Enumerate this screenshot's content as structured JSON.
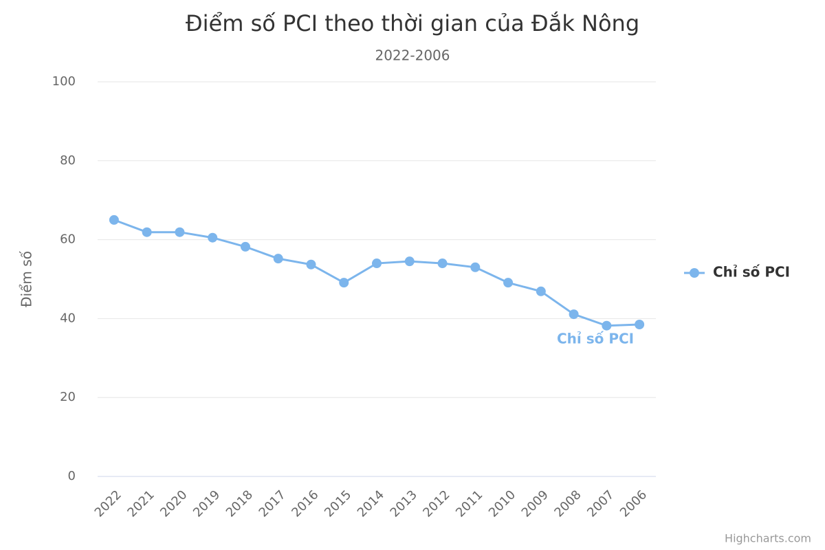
{
  "chart_data": {
    "type": "line",
    "title": "Điểm số PCI theo thời gian của Đắk Nông",
    "subtitle": "2022-2006",
    "y_label": "Điểm số",
    "categories": [
      "2022",
      "2021",
      "2020",
      "2019",
      "2018",
      "2017",
      "2016",
      "2015",
      "2014",
      "2013",
      "2012",
      "2011",
      "2010",
      "2009",
      "2008",
      "2007",
      "2006"
    ],
    "series": [
      {
        "name": "Chỉ số PCI",
        "color": "#7cb5ec",
        "values": [
          65,
          61.9,
          61.9,
          60.5,
          58.2,
          55.2,
          53.7,
          49.1,
          54.0,
          54.5,
          54.0,
          53.0,
          49.1,
          46.9,
          41.1,
          38.2,
          38.5
        ]
      }
    ],
    "ylim": [
      0,
      100
    ],
    "yticks": [
      0,
      20,
      40,
      60,
      80,
      100
    ],
    "grid": true,
    "legend": "right",
    "credits": "Highcharts.com"
  }
}
